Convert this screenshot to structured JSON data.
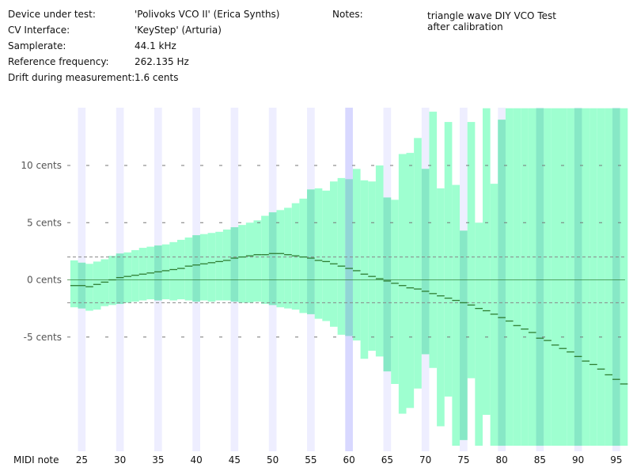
{
  "info": {
    "device_label": "Device under test:",
    "device_value": "'Polivoks VCO II' (Erica Synths)",
    "cv_label": "CV Interface:",
    "cv_value": "'KeyStep' (Arturia)",
    "samplerate_label": "Samplerate:",
    "samplerate_value": "44.1 kHz",
    "ref_label": "Reference frequency:",
    "ref_value": "262.135 Hz",
    "drift_label": "Drift during measurement:",
    "drift_value": "1.6 cents",
    "notes_label": "Notes:",
    "notes_line1": "triangle wave DIY VCO Test",
    "notes_line2": "after calibration"
  },
  "colors": {
    "range_fill": "#9effd0",
    "c_column": "#eeeeff",
    "ref_column": "#d8d8ff",
    "c_overlay": "#7fe0c3",
    "ref_overlay": "#8cc8d8",
    "mean_line": "#2e7d32",
    "drift_line": "#888888",
    "zero_line": "#2e7d32",
    "grid": "#777777"
  },
  "chart_data": {
    "type": "bar",
    "x_label": "MIDI note",
    "x_range": [
      24,
      96
    ],
    "y_range": [
      -14.5,
      15
    ],
    "y_ticks": [
      {
        "value": 10,
        "label": "10 cents"
      },
      {
        "value": 5,
        "label": "5 cents"
      },
      {
        "value": 0,
        "label": "0 cents"
      },
      {
        "value": -5,
        "label": "-5 cents"
      }
    ],
    "x_ticks": [
      25,
      30,
      35,
      40,
      45,
      50,
      55,
      60,
      65,
      70,
      75,
      80,
      85,
      90,
      95
    ],
    "c_notes": [
      24,
      36,
      48,
      60,
      72,
      84,
      96
    ],
    "reference_note": 60,
    "drift_band": [
      -2,
      2
    ],
    "series": [
      {
        "name": "min",
        "values": [
          -2.4,
          -2.5,
          -2.7,
          -2.6,
          -2.3,
          -2.2,
          -2.1,
          -2.0,
          -1.9,
          -1.8,
          -1.7,
          -1.8,
          -1.7,
          -1.8,
          -1.7,
          -1.8,
          -1.9,
          -1.8,
          -1.9,
          -1.8,
          -1.8,
          -1.9,
          -2.0,
          -2.0,
          -1.9,
          -2.1,
          -2.2,
          -2.4,
          -2.5,
          -2.6,
          -2.9,
          -3.0,
          -3.4,
          -3.6,
          -4.1,
          -4.8,
          -4.9,
          -5.3,
          -6.9,
          -6.2,
          -6.7,
          -8.0,
          -9.1,
          -11.7,
          -11.2,
          -9.5,
          -6.5,
          -7.7,
          -12.8,
          -10.2,
          -14.5,
          -14.0,
          -8.6,
          -14.5,
          -11.8,
          -14.5,
          -14.5,
          -14.5,
          -14.5,
          -14.5,
          -14.5,
          -14.5,
          -14.5,
          -14.5,
          -14.5,
          -14.5,
          -14.5,
          -14.5,
          -14.5,
          -14.5,
          -14.5,
          -14.5,
          -14.5
        ]
      },
      {
        "name": "mean",
        "values": [
          -0.5,
          -0.5,
          -0.6,
          -0.4,
          -0.2,
          0.0,
          0.2,
          0.3,
          0.4,
          0.5,
          0.6,
          0.7,
          0.8,
          0.9,
          1.0,
          1.2,
          1.3,
          1.4,
          1.5,
          1.6,
          1.7,
          1.9,
          2.0,
          2.1,
          2.2,
          2.2,
          2.3,
          2.3,
          2.2,
          2.1,
          2.0,
          1.9,
          1.7,
          1.6,
          1.4,
          1.2,
          1.0,
          0.8,
          0.5,
          0.3,
          0.1,
          -0.1,
          -0.3,
          -0.5,
          -0.7,
          -0.8,
          -1.0,
          -1.2,
          -1.4,
          -1.6,
          -1.8,
          -2.0,
          -2.2,
          -2.5,
          -2.7,
          -3.0,
          -3.3,
          -3.6,
          -4.0,
          -4.3,
          -4.6,
          -5.1,
          -5.3,
          -5.7,
          -6.0,
          -6.3,
          -6.7,
          -7.1,
          -7.4,
          -7.8,
          -8.3,
          -8.7,
          -9.1
        ]
      },
      {
        "name": "max",
        "values": [
          1.7,
          1.5,
          1.4,
          1.6,
          1.8,
          2.1,
          2.3,
          2.4,
          2.6,
          2.8,
          2.9,
          3.0,
          3.1,
          3.3,
          3.5,
          3.7,
          3.9,
          4.0,
          4.1,
          4.2,
          4.4,
          4.6,
          4.8,
          5.0,
          5.2,
          5.6,
          5.9,
          6.1,
          6.3,
          6.7,
          7.1,
          7.9,
          8.0,
          7.8,
          8.6,
          8.9,
          8.8,
          9.7,
          8.7,
          8.6,
          10.0,
          7.2,
          7.0,
          11.0,
          11.1,
          12.4,
          9.7,
          14.7,
          8.0,
          13.8,
          8.3,
          4.3,
          13.8,
          5.0,
          15.0,
          8.4,
          14.0,
          15.0,
          15.0,
          15.0,
          15.0,
          15.0,
          15.0,
          15.0,
          15.0,
          15.0,
          15.0,
          15.0,
          15.0,
          15.0,
          15.0,
          15.0,
          15.0
        ]
      }
    ]
  }
}
